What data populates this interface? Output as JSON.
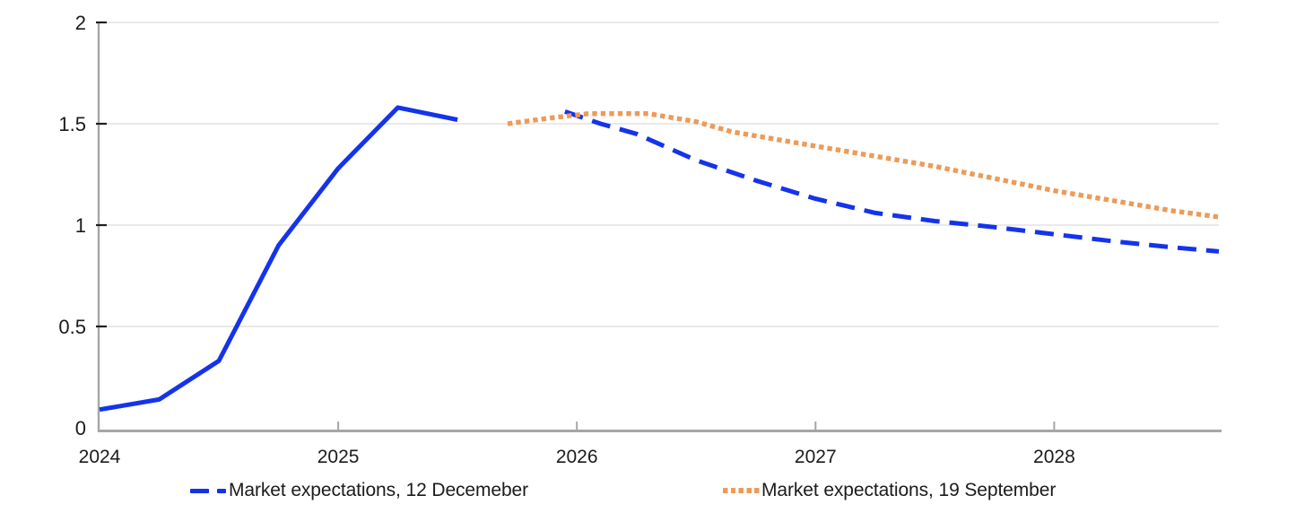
{
  "colors": {
    "blue": "#1433eb",
    "orange": "#ec9b58",
    "grid": "#e2e2e2",
    "axis": "#a6a6a6",
    "tick": "#1f1f1f",
    "text": "#1b1b1b",
    "background": "#ffffff"
  },
  "legend": {
    "items": [
      {
        "label": "Market expectations, 12 Decemeber",
        "marker": "blue-dashed-line"
      },
      {
        "label": "Market expectations, 19 September",
        "marker": "orange-dotted-line"
      }
    ]
  },
  "chart_data": {
    "type": "line",
    "title": "",
    "xlabel": "",
    "ylabel": "",
    "xlim": [
      2024,
      2028.69
    ],
    "ylim": [
      0,
      2
    ],
    "x_ticks": [
      2024,
      2025,
      2026,
      2027,
      2028
    ],
    "x_tick_labels": [
      "2024",
      "2025",
      "2026",
      "2027",
      "2028"
    ],
    "y_ticks": [
      0,
      0.5,
      1,
      1.5,
      2
    ],
    "y_tick_labels": [
      "0",
      "0.5",
      "1",
      "1.5",
      "2"
    ],
    "grid": "horizontal-only",
    "legend_position": "bottom",
    "series": [
      {
        "name": "Market expectations, 12 Decemeber",
        "color": "#1433eb",
        "segments": [
          {
            "dash": "solid",
            "points": [
              [
                2024.0,
                0.09
              ],
              [
                2024.25,
                0.14
              ],
              [
                2024.5,
                0.33
              ],
              [
                2024.75,
                0.9
              ],
              [
                2025.0,
                1.28
              ],
              [
                2025.25,
                1.58
              ],
              [
                2025.5,
                1.52
              ]
            ]
          },
          {
            "dash": "dashed",
            "points": [
              [
                2025.95,
                1.56
              ],
              [
                2026.1,
                1.5
              ],
              [
                2026.25,
                1.45
              ],
              [
                2026.5,
                1.32
              ],
              [
                2026.75,
                1.22
              ],
              [
                2027.0,
                1.13
              ],
              [
                2027.25,
                1.06
              ],
              [
                2027.5,
                1.02
              ],
              [
                2027.75,
                0.99
              ],
              [
                2028.0,
                0.955
              ],
              [
                2028.25,
                0.92
              ],
              [
                2028.5,
                0.89
              ],
              [
                2028.69,
                0.87
              ]
            ]
          }
        ]
      },
      {
        "name": "Market expectations, 19 September",
        "color": "#ec9b58",
        "segments": [
          {
            "dash": "dotted",
            "points": [
              [
                2025.71,
                1.5
              ],
              [
                2025.9,
                1.53
              ],
              [
                2026.05,
                1.55
              ],
              [
                2026.3,
                1.55
              ],
              [
                2026.5,
                1.51
              ],
              [
                2026.65,
                1.46
              ],
              [
                2026.8,
                1.43
              ],
              [
                2027.0,
                1.39
              ],
              [
                2027.25,
                1.34
              ],
              [
                2027.5,
                1.29
              ],
              [
                2027.75,
                1.23
              ],
              [
                2028.0,
                1.17
              ],
              [
                2028.25,
                1.12
              ],
              [
                2028.5,
                1.07
              ],
              [
                2028.69,
                1.04
              ]
            ]
          }
        ]
      }
    ]
  }
}
